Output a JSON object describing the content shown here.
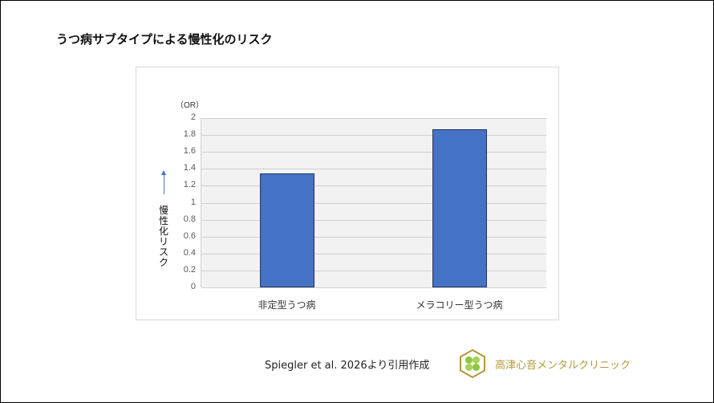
{
  "page": {
    "title": "うつ病サブタイプによる慢性化のリスク",
    "citation": "Spiegler et al. 2026より引用作成",
    "clinic_name": "高津心音メンタルクリニック",
    "logo_icon": "hexagon-clover-logo-icon"
  },
  "colors": {
    "bar": "#4472c4",
    "bar_border": "#203864",
    "plot_bg": "#f2f2f2",
    "clinic_text": "#b59a3a"
  },
  "chart_data": {
    "type": "bar",
    "title": "うつ病サブタイプによる慢性化のリスク",
    "categories": [
      "非定型うつ病",
      "メラコリー型うつ病"
    ],
    "values": [
      1.35,
      1.87
    ],
    "xlabel": "",
    "ylabel": "慢性化リスク",
    "y_unit": "（OR）",
    "ylim": [
      0,
      2
    ],
    "yticks": [
      "0",
      "0.2",
      "0.4",
      "0.6",
      "0.8",
      "1",
      "1.2",
      "1.4",
      "1.6",
      "1.8",
      "2"
    ],
    "grid": true,
    "legend": null,
    "annotations": [
      "↑ 慢性化リスク"
    ]
  }
}
